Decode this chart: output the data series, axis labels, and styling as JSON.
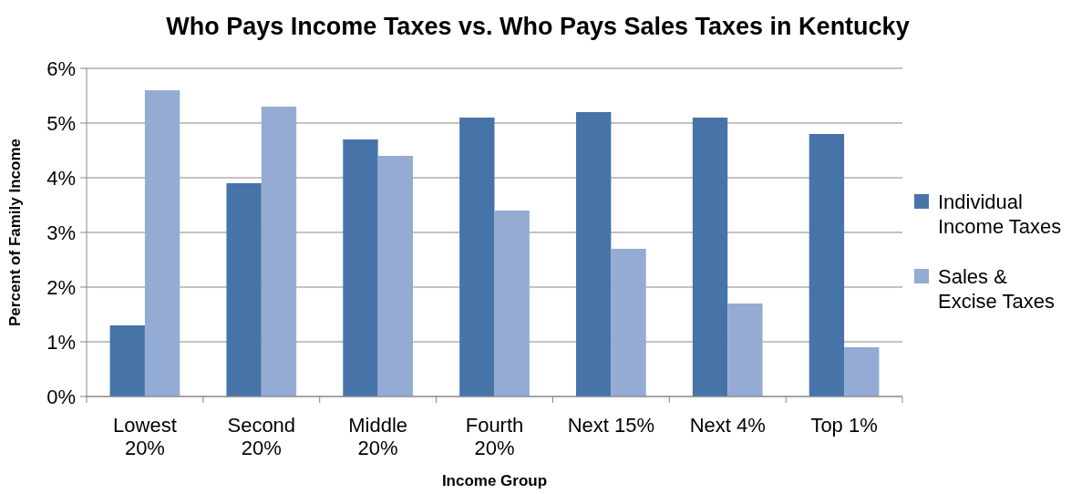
{
  "chart_data": {
    "type": "bar",
    "title": "Who Pays Income Taxes vs. Who Pays Sales Taxes in Kentucky",
    "xlabel": "Income Group",
    "ylabel": "Percent of Family Income",
    "categories": [
      "Lowest\n20%",
      "Second\n20%",
      "Middle\n20%",
      "Fourth\n20%",
      "Next 15%",
      "Next 4%",
      "Top 1%"
    ],
    "series": [
      {
        "name": "Individual\nIncome Taxes",
        "color": "#4674a9",
        "values": [
          1.3,
          3.9,
          4.7,
          5.1,
          5.2,
          5.1,
          4.8
        ]
      },
      {
        "name": "Sales &\nExcise Taxes",
        "color": "#94abd3",
        "values": [
          5.6,
          5.3,
          4.4,
          3.4,
          2.7,
          1.7,
          0.9
        ]
      }
    ],
    "ylim": [
      0,
      6
    ],
    "yticks": [
      {
        "value": 0,
        "label": "0%"
      },
      {
        "value": 1,
        "label": "1%"
      },
      {
        "value": 2,
        "label": "2%"
      },
      {
        "value": 3,
        "label": "3%"
      },
      {
        "value": 4,
        "label": "4%"
      },
      {
        "value": 5,
        "label": "5%"
      },
      {
        "value": 6,
        "label": "6%"
      }
    ],
    "grid": "y",
    "legend": "right"
  }
}
